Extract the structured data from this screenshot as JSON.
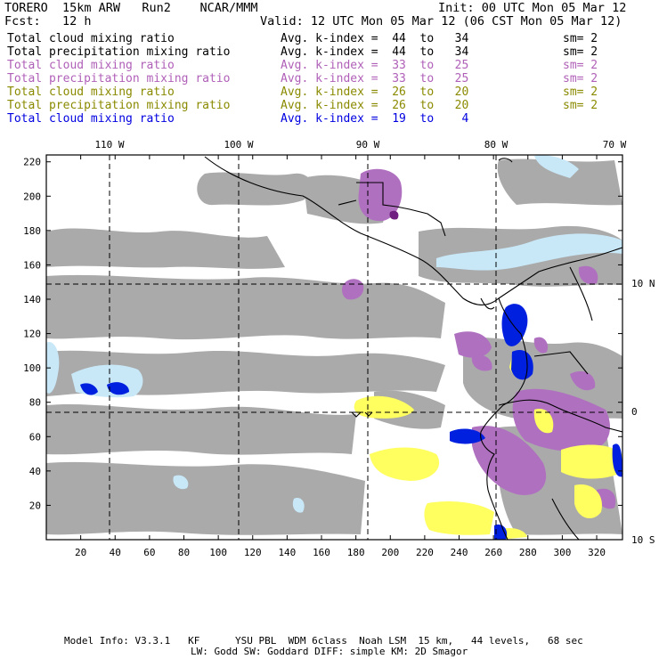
{
  "header": {
    "model": "TORERO  15km ARW   Run2    NCAR/MMM",
    "init": "Init: 00 UTC Mon 05 Mar 12",
    "fcst": "Fcst:   12 h",
    "valid": "Valid: 12 UTC Mon 05 Mar 12 (06 CST Mon 05 Mar 12)"
  },
  "legend": [
    {
      "field": "Total cloud mixing ratio",
      "range": "Avg. k-index =  44  to   34",
      "sm": "sm= 2",
      "color": "#000000"
    },
    {
      "field": "Total precipitation mixing ratio",
      "range": "Avg. k-index =  44  to   34",
      "sm": "sm= 2",
      "color": "#000000"
    },
    {
      "field": "Total cloud mixing ratio",
      "range": "Avg. k-index =  33  to   25",
      "sm": "sm= 2",
      "color": "#b060b8"
    },
    {
      "field": "Total precipitation mixing ratio",
      "range": "Avg. k-index =  33  to   25",
      "sm": "sm= 2",
      "color": "#b060b8"
    },
    {
      "field": "Total cloud mixing ratio",
      "range": "Avg. k-index =  26  to   20",
      "sm": "sm= 2",
      "color": "#8a8a00"
    },
    {
      "field": "Total precipitation mixing ratio",
      "range": "Avg. k-index =  26  to   20",
      "sm": "sm= 2",
      "color": "#8a8a00"
    },
    {
      "field": "Total cloud mixing ratio",
      "range": "Avg. k-index =  19  to    4",
      "sm": "",
      "color": "#0000e0"
    }
  ],
  "axes": {
    "lon_labels": [
      "110 W",
      "100 W",
      "90 W",
      "80 W",
      "70 W"
    ],
    "lat_labels": [
      "10 N",
      "0",
      "10 S"
    ],
    "x_ticks": [
      "20",
      "40",
      "60",
      "80",
      "100",
      "120",
      "140",
      "160",
      "180",
      "200",
      "220",
      "240",
      "260",
      "280",
      "300",
      "320"
    ],
    "y_ticks": [
      "220",
      "200",
      "180",
      "160",
      "140",
      "120",
      "100",
      "80",
      "60",
      "40",
      "20"
    ]
  },
  "colors": {
    "cloud_gray": "#aaaaaa",
    "purple": "#b070c0",
    "yellow": "#ffff60",
    "blue": "#0020e0",
    "light_blue": "#c8e8f8",
    "land_line": "#000000"
  },
  "footer": {
    "line1": "Model Info: V3.3.1   KF      YSU PBL  WDM 6class  Noah LSM  15 km,   44 levels,   68 sec",
    "line2": "LW: Godd SW: Goddard DIFF: simple KM: 2D Smagor"
  }
}
